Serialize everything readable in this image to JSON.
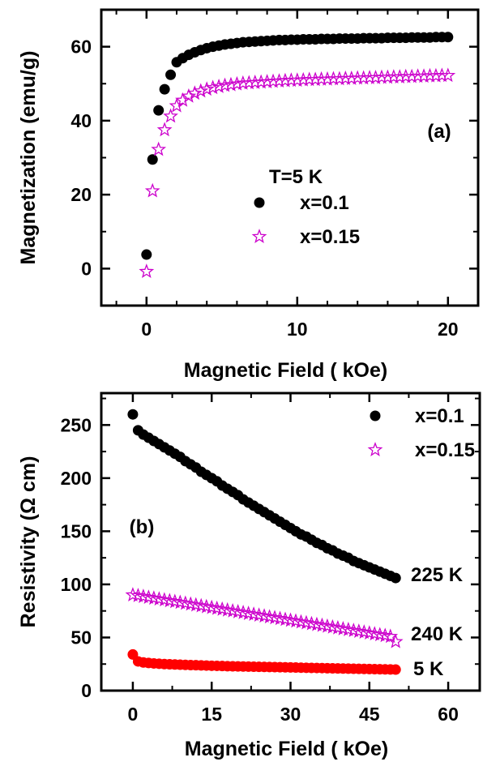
{
  "chart_data": [
    {
      "panel": "(a)",
      "type": "scatter",
      "xlabel": "Magnetic Field ( kOe)",
      "ylabel": "Magnetization (emu/g)",
      "xlim": [
        -3,
        22
      ],
      "ylim": [
        -10,
        70
      ],
      "xticks": [
        "0",
        "10",
        "20"
      ],
      "yticks": [
        "0",
        "20",
        "40",
        "60"
      ],
      "legend_title": "T=5 K",
      "legend_position": "center-right",
      "series": [
        {
          "name": "x=0.1",
          "marker": "circle",
          "color": "#000000",
          "points": [
            [
              0,
              3.8
            ],
            [
              0.4,
              29.5
            ],
            [
              0.8,
              42.8
            ],
            [
              1.2,
              48.5
            ],
            [
              1.6,
              52.4
            ],
            [
              2.0,
              55.8
            ],
            [
              2.4,
              56.9
            ],
            [
              2.8,
              57.8
            ],
            [
              3.2,
              58.5
            ],
            [
              3.6,
              59.1
            ],
            [
              4.0,
              59.6
            ],
            [
              4.4,
              60.0
            ],
            [
              4.8,
              60.3
            ],
            [
              5.2,
              60.6
            ],
            [
              5.6,
              60.8
            ],
            [
              6.0,
              61.0
            ],
            [
              6.4,
              61.2
            ],
            [
              6.8,
              61.3
            ],
            [
              7.2,
              61.4
            ],
            [
              7.6,
              61.5
            ],
            [
              8.0,
              61.6
            ],
            [
              8.4,
              61.7
            ],
            [
              8.8,
              61.8
            ],
            [
              9.2,
              61.8
            ],
            [
              9.6,
              61.9
            ],
            [
              10.0,
              61.9
            ],
            [
              10.4,
              62.0
            ],
            [
              10.8,
              62.0
            ],
            [
              11.2,
              62.0
            ],
            [
              11.6,
              62.1
            ],
            [
              12.0,
              62.1
            ],
            [
              12.4,
              62.1
            ],
            [
              12.8,
              62.2
            ],
            [
              13.2,
              62.2
            ],
            [
              13.6,
              62.2
            ],
            [
              14.0,
              62.2
            ],
            [
              14.4,
              62.3
            ],
            [
              14.8,
              62.3
            ],
            [
              15.2,
              62.3
            ],
            [
              15.6,
              62.3
            ],
            [
              16.0,
              62.4
            ],
            [
              16.4,
              62.4
            ],
            [
              16.8,
              62.4
            ],
            [
              17.2,
              62.4
            ],
            [
              17.6,
              62.5
            ],
            [
              18.0,
              62.5
            ],
            [
              18.4,
              62.5
            ],
            [
              18.8,
              62.5
            ],
            [
              19.2,
              62.6
            ],
            [
              19.6,
              62.6
            ],
            [
              20.0,
              62.6
            ]
          ]
        },
        {
          "name": "x=0.15",
          "marker": "star",
          "color": "#cc00cc",
          "points": [
            [
              0,
              -0.8
            ],
            [
              0.4,
              21.0
            ],
            [
              0.8,
              32.2
            ],
            [
              1.2,
              37.5
            ],
            [
              1.6,
              41.2
            ],
            [
              2.0,
              44.0
            ],
            [
              2.4,
              45.5
            ],
            [
              2.8,
              46.6
            ],
            [
              3.2,
              47.4
            ],
            [
              3.6,
              48.0
            ],
            [
              4.0,
              48.5
            ],
            [
              4.4,
              48.9
            ],
            [
              4.8,
              49.2
            ],
            [
              5.2,
              49.5
            ],
            [
              5.6,
              49.7
            ],
            [
              6.0,
              49.9
            ],
            [
              6.4,
              50.1
            ],
            [
              6.8,
              50.2
            ],
            [
              7.2,
              50.3
            ],
            [
              7.6,
              50.4
            ],
            [
              8.0,
              50.5
            ],
            [
              8.4,
              50.6
            ],
            [
              8.8,
              50.7
            ],
            [
              9.2,
              50.8
            ],
            [
              9.6,
              50.9
            ],
            [
              10.0,
              50.9
            ],
            [
              10.4,
              51.0
            ],
            [
              10.8,
              51.1
            ],
            [
              11.2,
              51.1
            ],
            [
              11.6,
              51.2
            ],
            [
              12.0,
              51.2
            ],
            [
              12.4,
              51.3
            ],
            [
              12.8,
              51.3
            ],
            [
              13.2,
              51.4
            ],
            [
              13.6,
              51.4
            ],
            [
              14.0,
              51.5
            ],
            [
              14.4,
              51.5
            ],
            [
              14.8,
              51.6
            ],
            [
              15.2,
              51.6
            ],
            [
              15.6,
              51.7
            ],
            [
              16.0,
              51.7
            ],
            [
              16.4,
              51.8
            ],
            [
              16.8,
              51.8
            ],
            [
              17.2,
              51.9
            ],
            [
              17.6,
              51.9
            ],
            [
              18.0,
              52.0
            ],
            [
              18.4,
              52.0
            ],
            [
              18.8,
              52.1
            ],
            [
              19.2,
              52.1
            ],
            [
              19.6,
              52.2
            ],
            [
              20.0,
              52.2
            ]
          ]
        }
      ]
    },
    {
      "panel": "(b)",
      "type": "scatter",
      "xlabel": "Magnetic Field ( kOe)",
      "ylabel": "Resistivity (Ω cm)",
      "xlim": [
        -6,
        66
      ],
      "ylim": [
        0,
        280
      ],
      "xticks": [
        "0",
        "15",
        "30",
        "45",
        "60"
      ],
      "yticks": [
        "0",
        "50",
        "100",
        "150",
        "200",
        "250"
      ],
      "legend_position": "top-right",
      "series": [
        {
          "name": "x=0.1",
          "marker": "circle",
          "color": "#000000",
          "curve_label": "225 K",
          "points": [
            [
              0,
              260
            ],
            [
              1,
              245
            ],
            [
              2,
              241
            ],
            [
              3,
              238
            ],
            [
              4,
              235
            ],
            [
              5,
              232
            ],
            [
              6,
              229
            ],
            [
              7,
              226
            ],
            [
              8,
              223
            ],
            [
              9,
              220
            ],
            [
              10,
              216
            ],
            [
              11,
              213
            ],
            [
              12,
              210
            ],
            [
              13,
              206
            ],
            [
              14,
              203
            ],
            [
              15,
              200
            ],
            [
              16,
              197
            ],
            [
              17,
              193
            ],
            [
              18,
              190
            ],
            [
              19,
              187
            ],
            [
              20,
              184
            ],
            [
              21,
              180
            ],
            [
              22,
              177
            ],
            [
              23,
              174
            ],
            [
              24,
              171
            ],
            [
              25,
              168
            ],
            [
              26,
              165
            ],
            [
              27,
              162
            ],
            [
              28,
              159
            ],
            [
              29,
              156
            ],
            [
              30,
              153
            ],
            [
              31,
              150
            ],
            [
              32,
              147
            ],
            [
              33,
              145
            ],
            [
              34,
              142
            ],
            [
              35,
              139
            ],
            [
              36,
              137
            ],
            [
              37,
              134
            ],
            [
              38,
              132
            ],
            [
              39,
              129
            ],
            [
              40,
              127
            ],
            [
              41,
              125
            ],
            [
              42,
              122
            ],
            [
              43,
              120
            ],
            [
              44,
              118
            ],
            [
              45,
              116
            ],
            [
              46,
              114
            ],
            [
              47,
              112
            ],
            [
              48,
              110
            ],
            [
              49,
              108
            ],
            [
              50,
              106
            ]
          ]
        },
        {
          "name": "x=0.15",
          "marker": "star",
          "color": "#cc00cc",
          "curve_label": "240 K",
          "points": [
            [
              0,
              90
            ],
            [
              1,
              89.3
            ],
            [
              2,
              88.5
            ],
            [
              3,
              87.7
            ],
            [
              4,
              86.9
            ],
            [
              5,
              86.1
            ],
            [
              6,
              85.3
            ],
            [
              7,
              84.5
            ],
            [
              8,
              83.7
            ],
            [
              9,
              82.9
            ],
            [
              10,
              82.1
            ],
            [
              11,
              81.3
            ],
            [
              12,
              80.5
            ],
            [
              13,
              79.7
            ],
            [
              14,
              78.9
            ],
            [
              15,
              78.1
            ],
            [
              16,
              77.3
            ],
            [
              17,
              76.5
            ],
            [
              18,
              75.7
            ],
            [
              19,
              74.9
            ],
            [
              20,
              74.1
            ],
            [
              21,
              73.3
            ],
            [
              22,
              72.5
            ],
            [
              23,
              71.7
            ],
            [
              24,
              70.9
            ],
            [
              25,
              70.1
            ],
            [
              26,
              69.3
            ],
            [
              27,
              68.5
            ],
            [
              28,
              67.7
            ],
            [
              29,
              66.9
            ],
            [
              30,
              66.1
            ],
            [
              31,
              65.3
            ],
            [
              32,
              64.5
            ],
            [
              33,
              63.7
            ],
            [
              34,
              62.9
            ],
            [
              35,
              62.1
            ],
            [
              36,
              61.3
            ],
            [
              37,
              60.5
            ],
            [
              38,
              59.7
            ],
            [
              39,
              58.9
            ],
            [
              40,
              58.1
            ],
            [
              41,
              57.3
            ],
            [
              42,
              56.5
            ],
            [
              43,
              55.7
            ],
            [
              44,
              54.9
            ],
            [
              45,
              54.1
            ],
            [
              46,
              53.3
            ],
            [
              47,
              52.5
            ],
            [
              48,
              51.7
            ],
            [
              49,
              50.9
            ],
            [
              50,
              46
            ]
          ]
        },
        {
          "name": "5 K",
          "marker": "circle",
          "color": "#ff0000",
          "curve_label": "5 K",
          "in_legend": false,
          "points": [
            [
              0,
              34
            ],
            [
              1,
              27.5
            ],
            [
              2,
              26.5
            ],
            [
              3,
              26.0
            ],
            [
              4,
              25.6
            ],
            [
              5,
              25.3
            ],
            [
              6,
              25.0
            ],
            [
              7,
              24.8
            ],
            [
              8,
              24.6
            ],
            [
              9,
              24.4
            ],
            [
              10,
              24.2
            ],
            [
              11,
              24.0
            ],
            [
              12,
              23.9
            ],
            [
              13,
              23.7
            ],
            [
              14,
              23.6
            ],
            [
              15,
              23.4
            ],
            [
              16,
              23.3
            ],
            [
              17,
              23.2
            ],
            [
              18,
              23.0
            ],
            [
              19,
              22.9
            ],
            [
              20,
              22.8
            ],
            [
              21,
              22.7
            ],
            [
              22,
              22.6
            ],
            [
              23,
              22.5
            ],
            [
              24,
              22.4
            ],
            [
              25,
              22.3
            ],
            [
              26,
              22.2
            ],
            [
              27,
              22.1
            ],
            [
              28,
              22.0
            ],
            [
              29,
              21.9
            ],
            [
              30,
              21.8
            ],
            [
              31,
              21.7
            ],
            [
              32,
              21.6
            ],
            [
              33,
              21.5
            ],
            [
              34,
              21.4
            ],
            [
              35,
              21.3
            ],
            [
              36,
              21.2
            ],
            [
              37,
              21.1
            ],
            [
              38,
              21.0
            ],
            [
              39,
              20.9
            ],
            [
              40,
              20.8
            ],
            [
              41,
              20.7
            ],
            [
              42,
              20.6
            ],
            [
              43,
              20.5
            ],
            [
              44,
              20.4
            ],
            [
              45,
              20.3
            ],
            [
              46,
              20.2
            ],
            [
              47,
              20.1
            ],
            [
              48,
              20.0
            ],
            [
              49,
              19.9
            ],
            [
              50,
              19.8
            ]
          ]
        }
      ]
    }
  ]
}
